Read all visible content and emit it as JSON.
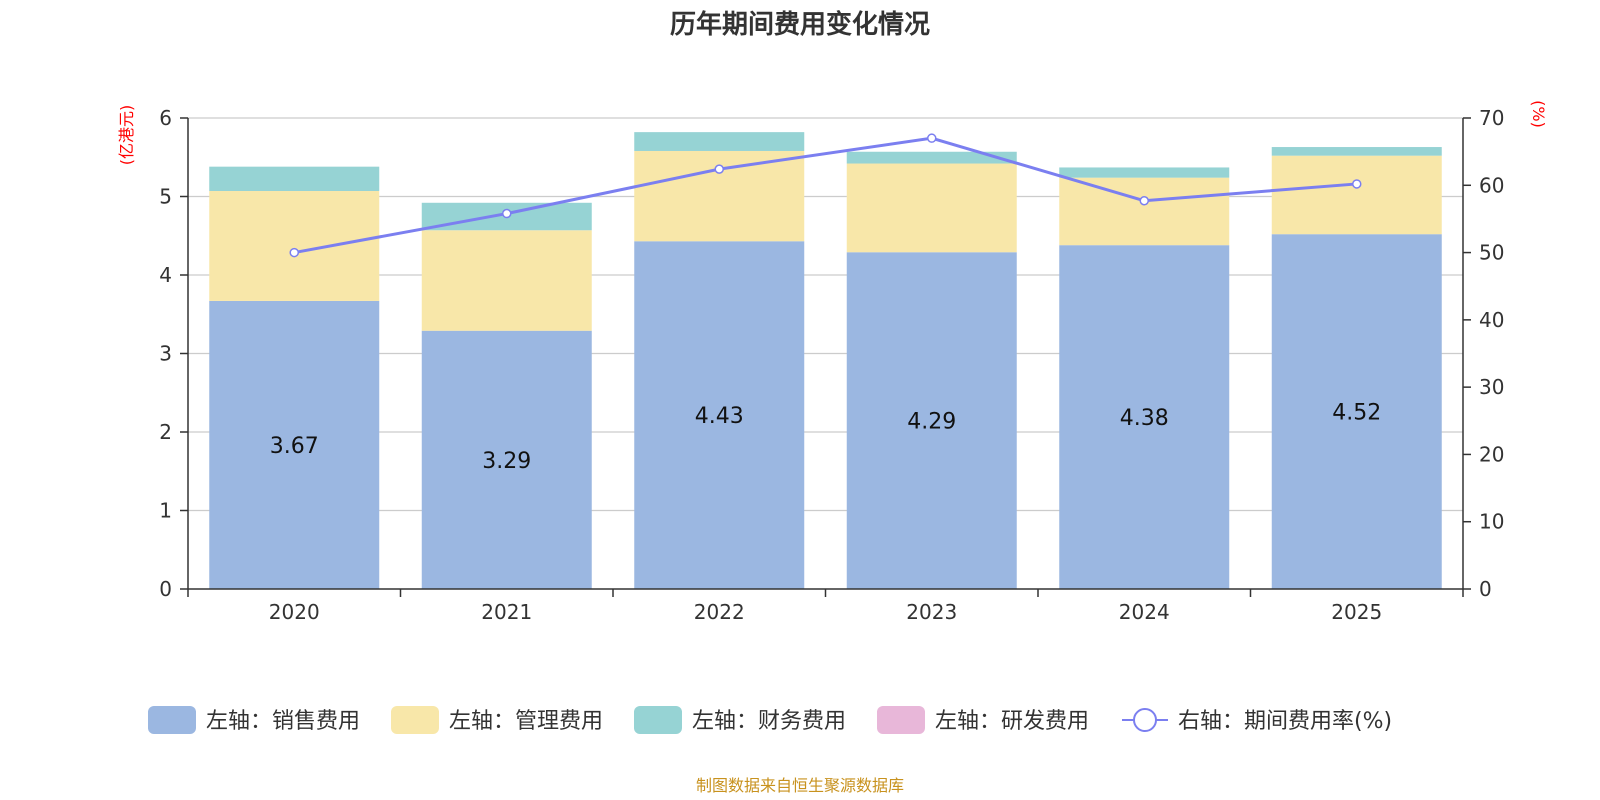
{
  "chart_data": {
    "type": "bar",
    "title": "历年期间费用变化情况",
    "categories": [
      "2020",
      "2021",
      "2022",
      "2023",
      "2024",
      "2025"
    ],
    "left_axis": {
      "unit": "(亿港元)",
      "range": [
        0,
        6
      ],
      "ticks": [
        "0",
        "1",
        "2",
        "3",
        "4",
        "5",
        "6"
      ]
    },
    "right_axis": {
      "unit": "(%)",
      "range": [
        0,
        70
      ],
      "ticks": [
        "0",
        "10",
        "20",
        "30",
        "40",
        "50",
        "60",
        "70"
      ]
    },
    "series": [
      {
        "name": "左轴：销售费用",
        "kind": "bar",
        "color": "#9bb7e1",
        "values": [
          3.67,
          3.29,
          4.43,
          4.29,
          4.38,
          4.52
        ]
      },
      {
        "name": "左轴：管理费用",
        "kind": "bar",
        "color": "#f8e7a9",
        "values": [
          1.4,
          1.28,
          1.15,
          1.13,
          0.86,
          1.0
        ]
      },
      {
        "name": "左轴：财务费用",
        "kind": "bar",
        "color": "#96d3d4",
        "values": [
          0.31,
          0.35,
          0.24,
          0.15,
          0.13,
          0.11
        ]
      },
      {
        "name": "左轴：研发费用",
        "kind": "bar",
        "color": "#e8b7d9",
        "values": [
          0,
          0,
          0,
          0,
          0,
          0
        ]
      },
      {
        "name": "右轴：期间费用率(%)",
        "kind": "line",
        "color": "#7b7ff0",
        "values": [
          50.0,
          55.8,
          62.4,
          67.0,
          57.7,
          60.2
        ]
      }
    ],
    "bar_labels": [
      "3.67",
      "3.29",
      "4.43",
      "4.29",
      "4.38",
      "4.52"
    ],
    "grid": true,
    "legend_position": "bottom"
  },
  "colors": {
    "unit_red": "#ff0000",
    "source_gold": "#c8921e",
    "axis": "#333333",
    "grid": "#cccccc"
  },
  "footer": {
    "source": "制图数据来自恒生聚源数据库"
  }
}
